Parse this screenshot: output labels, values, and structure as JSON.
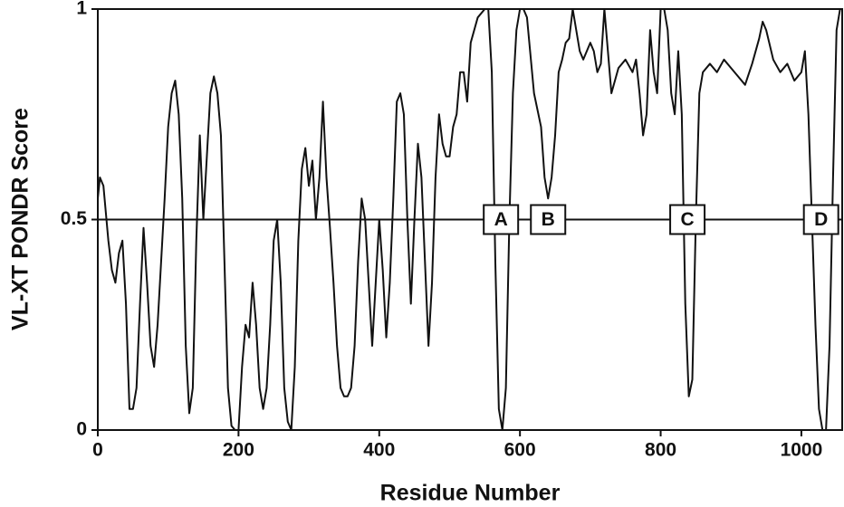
{
  "chart_data": {
    "type": "line",
    "x_label": "Residue Number",
    "y_label": "VL-XT PONDR Score",
    "xlim": [
      0,
      1058
    ],
    "ylim": [
      0,
      1
    ],
    "xticks": [
      0,
      200,
      400,
      600,
      800,
      1000
    ],
    "yticks": [
      0,
      0.5,
      1
    ],
    "threshold": 0.5,
    "x": [
      0,
      3,
      8,
      15,
      20,
      25,
      30,
      35,
      40,
      45,
      50,
      55,
      60,
      65,
      70,
      75,
      80,
      85,
      90,
      95,
      100,
      105,
      110,
      115,
      120,
      125,
      130,
      135,
      140,
      145,
      150,
      155,
      160,
      165,
      170,
      175,
      180,
      185,
      190,
      195,
      200,
      205,
      210,
      215,
      220,
      225,
      230,
      235,
      240,
      245,
      250,
      255,
      260,
      265,
      270,
      275,
      280,
      285,
      290,
      295,
      300,
      305,
      310,
      315,
      320,
      325,
      330,
      335,
      340,
      345,
      350,
      355,
      360,
      365,
      370,
      375,
      380,
      385,
      390,
      395,
      400,
      405,
      410,
      415,
      420,
      425,
      430,
      435,
      440,
      445,
      450,
      455,
      460,
      465,
      470,
      475,
      480,
      485,
      490,
      495,
      500,
      505,
      510,
      515,
      520,
      525,
      530,
      540,
      550,
      555,
      560,
      565,
      570,
      575,
      580,
      585,
      590,
      595,
      600,
      605,
      610,
      620,
      630,
      635,
      640,
      645,
      650,
      655,
      660,
      665,
      670,
      675,
      680,
      685,
      690,
      695,
      700,
      705,
      710,
      715,
      720,
      725,
      730,
      740,
      750,
      760,
      765,
      770,
      775,
      780,
      785,
      790,
      795,
      800,
      805,
      810,
      815,
      820,
      825,
      830,
      835,
      840,
      845,
      850,
      855,
      860,
      870,
      880,
      890,
      900,
      910,
      920,
      930,
      940,
      945,
      950,
      960,
      970,
      980,
      990,
      1000,
      1005,
      1010,
      1015,
      1020,
      1025,
      1030,
      1035,
      1040,
      1045,
      1050,
      1055
    ],
    "series": [
      {
        "color": "#111111",
        "values": [
          0.55,
          0.6,
          0.58,
          0.45,
          0.38,
          0.35,
          0.42,
          0.45,
          0.3,
          0.05,
          0.05,
          0.1,
          0.3,
          0.48,
          0.35,
          0.2,
          0.15,
          0.25,
          0.4,
          0.55,
          0.72,
          0.8,
          0.83,
          0.75,
          0.55,
          0.2,
          0.04,
          0.1,
          0.45,
          0.7,
          0.5,
          0.65,
          0.8,
          0.84,
          0.8,
          0.7,
          0.4,
          0.1,
          0.01,
          0,
          0,
          0.15,
          0.25,
          0.22,
          0.35,
          0.25,
          0.1,
          0.05,
          0.1,
          0.25,
          0.45,
          0.5,
          0.35,
          0.1,
          0.02,
          0,
          0.15,
          0.45,
          0.62,
          0.67,
          0.58,
          0.64,
          0.5,
          0.6,
          0.78,
          0.6,
          0.48,
          0.35,
          0.2,
          0.1,
          0.08,
          0.08,
          0.1,
          0.2,
          0.4,
          0.55,
          0.5,
          0.35,
          0.2,
          0.35,
          0.5,
          0.38,
          0.22,
          0.35,
          0.55,
          0.78,
          0.8,
          0.75,
          0.5,
          0.3,
          0.5,
          0.68,
          0.6,
          0.4,
          0.2,
          0.35,
          0.6,
          0.75,
          0.68,
          0.65,
          0.65,
          0.72,
          0.75,
          0.85,
          0.85,
          0.78,
          0.92,
          0.98,
          1,
          1,
          0.85,
          0.4,
          0.05,
          0,
          0.1,
          0.5,
          0.8,
          0.95,
          1,
          1,
          0.98,
          0.8,
          0.72,
          0.6,
          0.55,
          0.6,
          0.7,
          0.85,
          0.88,
          0.92,
          0.93,
          1,
          0.95,
          0.9,
          0.88,
          0.9,
          0.92,
          0.9,
          0.85,
          0.87,
          1,
          0.9,
          0.8,
          0.86,
          0.88,
          0.85,
          0.88,
          0.8,
          0.7,
          0.75,
          0.95,
          0.85,
          0.8,
          1,
          1,
          0.95,
          0.8,
          0.75,
          0.9,
          0.75,
          0.3,
          0.08,
          0.12,
          0.5,
          0.8,
          0.85,
          0.87,
          0.85,
          0.88,
          0.86,
          0.84,
          0.82,
          0.87,
          0.93,
          0.97,
          0.95,
          0.88,
          0.85,
          0.87,
          0.83,
          0.85,
          0.9,
          0.75,
          0.5,
          0.25,
          0.05,
          0,
          0,
          0.2,
          0.6,
          0.95,
          1
        ]
      }
    ],
    "annotations": [
      {
        "text": "A",
        "x": 573,
        "y": 0.5
      },
      {
        "text": "B",
        "x": 640,
        "y": 0.5
      },
      {
        "text": "C",
        "x": 838,
        "y": 0.5
      },
      {
        "text": "D",
        "x": 1028,
        "y": 0.5
      }
    ]
  }
}
